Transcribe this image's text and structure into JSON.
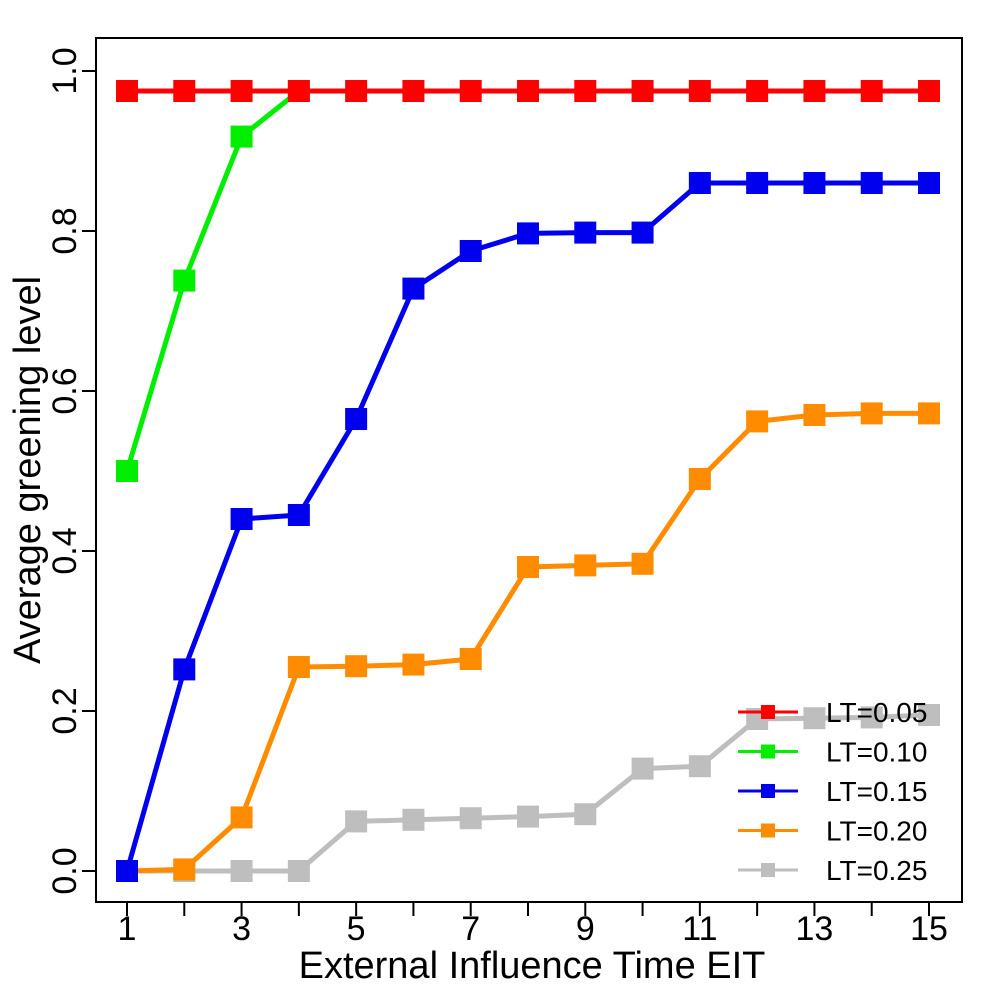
{
  "chart_data": {
    "type": "line",
    "title": "",
    "xlabel": "External Influence Time EIT",
    "ylabel": "Average greening level",
    "xlim": [
      1,
      15
    ],
    "ylim": [
      0,
      1
    ],
    "x_ticks": [
      1,
      3,
      5,
      7,
      9,
      11,
      13,
      15
    ],
    "x_tick_labels": [
      "1",
      "3",
      "5",
      "7",
      "9",
      "11",
      "13",
      "15"
    ],
    "x_minor_ticks": [
      2,
      4,
      6,
      8,
      10,
      12,
      14
    ],
    "y_ticks": [
      0.0,
      0.2,
      0.4,
      0.6,
      0.8,
      1.0
    ],
    "y_tick_labels": [
      "0.0",
      "0.2",
      "0.4",
      "0.6",
      "0.8",
      "1.0"
    ],
    "grid": false,
    "legend_position": "bottom-right",
    "series": [
      {
        "name": "LT=0.05",
        "color": "#ff0000",
        "x": [
          1,
          2,
          3,
          4,
          5,
          6,
          7,
          8,
          9,
          10,
          11,
          12,
          13,
          14,
          15
        ],
        "values": [
          0.975,
          0.975,
          0.975,
          0.975,
          0.975,
          0.975,
          0.975,
          0.975,
          0.975,
          0.975,
          0.975,
          0.975,
          0.975,
          0.975,
          0.975
        ]
      },
      {
        "name": "LT=0.10",
        "color": "#00ee00",
        "x": [
          1,
          2,
          3,
          4
        ],
        "values": [
          0.5,
          0.738,
          0.918,
          0.975
        ]
      },
      {
        "name": "LT=0.15",
        "color": "#0000ee",
        "x": [
          1,
          2,
          3,
          4,
          5,
          6,
          7,
          8,
          9,
          10,
          11,
          12,
          13,
          14,
          15
        ],
        "values": [
          0.0,
          0.252,
          0.44,
          0.445,
          0.565,
          0.728,
          0.775,
          0.797,
          0.798,
          0.798,
          0.86,
          0.86,
          0.86,
          0.86,
          0.86
        ]
      },
      {
        "name": "LT=0.20",
        "color": "#ff8c00",
        "x": [
          1,
          2,
          3,
          4,
          5,
          6,
          7,
          8,
          9,
          10,
          11,
          12,
          13,
          14,
          15
        ],
        "values": [
          0.0,
          0.002,
          0.067,
          0.255,
          0.256,
          0.258,
          0.265,
          0.38,
          0.382,
          0.384,
          0.49,
          0.562,
          0.57,
          0.572,
          0.572
        ]
      },
      {
        "name": "LT=0.25",
        "color": "#bebebe",
        "x": [
          1,
          2,
          3,
          4,
          5,
          6,
          7,
          8,
          9,
          10,
          11,
          12,
          13,
          14,
          15
        ],
        "values": [
          0.0,
          0.0,
          0.0,
          0.0,
          0.062,
          0.064,
          0.066,
          0.068,
          0.071,
          0.128,
          0.131,
          0.19,
          0.191,
          0.192,
          0.195
        ]
      }
    ]
  }
}
